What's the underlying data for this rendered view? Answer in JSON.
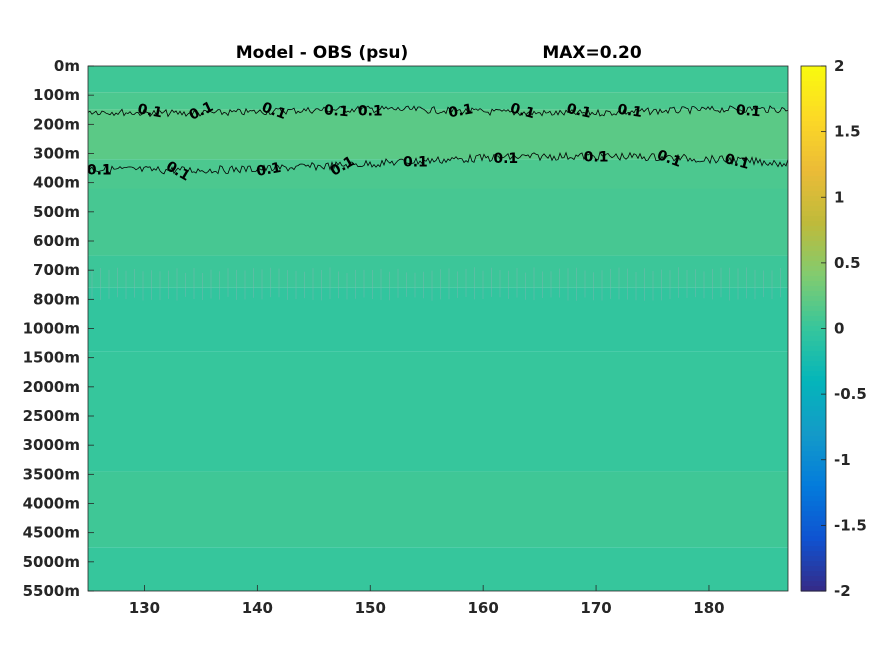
{
  "chart_data": {
    "type": "heatmap",
    "title": "Model - OBS (psu)",
    "max_label": "MAX=0.20",
    "x_ticks": [
      "130",
      "140",
      "150",
      "160",
      "170",
      "180"
    ],
    "x_tick_values": [
      130,
      140,
      150,
      160,
      170,
      180
    ],
    "xlim": [
      125,
      187
    ],
    "y_ticks": [
      "0m",
      "100m",
      "200m",
      "300m",
      "400m",
      "500m",
      "600m",
      "700m",
      "800m",
      "1000m",
      "1500m",
      "2000m",
      "2500m",
      "3000m",
      "3500m",
      "4000m",
      "4500m",
      "5000m",
      "5500m"
    ],
    "colorbar": {
      "ticks": [
        "2",
        "1.5",
        "1",
        "0.5",
        "0",
        "-0.5",
        "-1",
        "-1.5",
        "-2"
      ],
      "tick_values": [
        2,
        1.5,
        1,
        0.5,
        0,
        -0.5,
        -1,
        -1.5,
        -2
      ],
      "range": [
        -2,
        2
      ],
      "colormap": "parula"
    },
    "contour_level": "0.1",
    "contour_labels_upper": [
      {
        "x": 130.5,
        "text": "0.1"
      },
      {
        "x": 135,
        "text": "0.1"
      },
      {
        "x": 141.5,
        "text": "0.1"
      },
      {
        "x": 147,
        "text": "0.1"
      },
      {
        "x": 150,
        "text": "0.1"
      },
      {
        "x": 158,
        "text": "0.1"
      },
      {
        "x": 163.5,
        "text": "0.1"
      },
      {
        "x": 168.5,
        "text": "0.1"
      },
      {
        "x": 173,
        "text": "0.1"
      },
      {
        "x": 183.5,
        "text": "0.1"
      }
    ],
    "contour_labels_lower": [
      {
        "x": 126,
        "text": "0.1"
      },
      {
        "x": 133,
        "text": "0.1"
      },
      {
        "x": 141,
        "text": "0.1"
      },
      {
        "x": 147.5,
        "text": "0.1"
      },
      {
        "x": 154,
        "text": "0.1"
      },
      {
        "x": 162,
        "text": "0.1"
      },
      {
        "x": 170,
        "text": "0.1"
      },
      {
        "x": 176.5,
        "text": "0.1"
      },
      {
        "x": 182.5,
        "text": "0.1"
      }
    ],
    "field_bands": [
      {
        "depth_index_from": 0,
        "depth_index_to": 0.9,
        "value": 0.05
      },
      {
        "depth_index_from": 0.9,
        "depth_index_to": 1.5,
        "value": 0.12
      },
      {
        "depth_index_from": 1.5,
        "depth_index_to": 3.2,
        "value": 0.2
      },
      {
        "depth_index_from": 3.2,
        "depth_index_to": 4.2,
        "value": 0.12
      },
      {
        "depth_index_from": 4.2,
        "depth_index_to": 6.5,
        "value": 0.09
      },
      {
        "depth_index_from": 6.5,
        "depth_index_to": 7.6,
        "value": 0.03
      },
      {
        "depth_index_from": 7.6,
        "depth_index_to": 9.8,
        "value": -0.03
      },
      {
        "depth_index_from": 9.8,
        "depth_index_to": 13.9,
        "value": 0.0
      },
      {
        "depth_index_from": 13.9,
        "depth_index_to": 16.5,
        "value": 0.05
      },
      {
        "depth_index_from": 16.5,
        "depth_index_to": 18,
        "value": 0.0
      }
    ]
  }
}
